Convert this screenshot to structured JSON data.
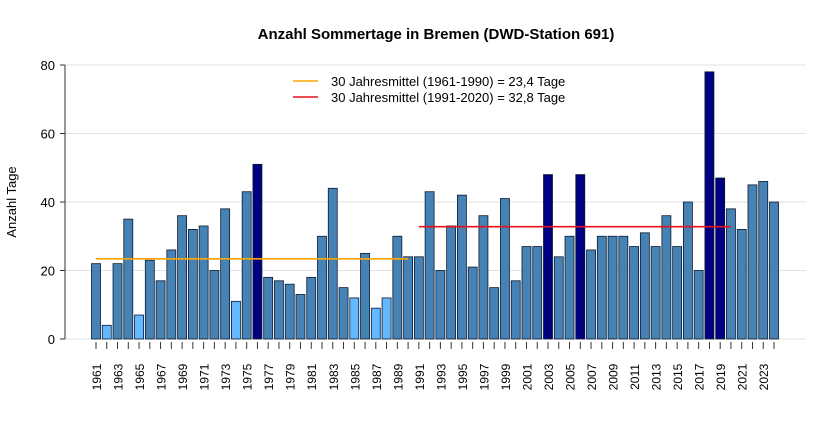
{
  "chart_data": {
    "type": "bar",
    "title": "Anzahl Sommertage in Bremen (DWD-Station 691)",
    "xlabel": "",
    "ylabel": "Anzahl Tage",
    "ylim": [
      0,
      80
    ],
    "yticks": [
      0,
      20,
      40,
      60,
      80
    ],
    "grid": true,
    "legend_placement": "top-center",
    "categories": [
      1961,
      1962,
      1963,
      1964,
      1965,
      1966,
      1967,
      1968,
      1969,
      1970,
      1971,
      1972,
      1973,
      1974,
      1975,
      1976,
      1977,
      1978,
      1979,
      1980,
      1981,
      1982,
      1983,
      1984,
      1985,
      1986,
      1987,
      1988,
      1989,
      1990,
      1991,
      1992,
      1993,
      1994,
      1995,
      1996,
      1997,
      1998,
      1999,
      2000,
      2001,
      2002,
      2003,
      2004,
      2005,
      2006,
      2007,
      2008,
      2009,
      2010,
      2011,
      2012,
      2013,
      2014,
      2015,
      2016,
      2017,
      2018,
      2019,
      2020,
      2021,
      2022,
      2023,
      2024
    ],
    "values": [
      22,
      4,
      22,
      35,
      7,
      23,
      17,
      26,
      36,
      32,
      33,
      20,
      38,
      11,
      43,
      51,
      18,
      17,
      16,
      13,
      18,
      30,
      44,
      15,
      12,
      25,
      9,
      12,
      30,
      24,
      24,
      43,
      20,
      33,
      42,
      21,
      36,
      15,
      41,
      17,
      27,
      27,
      48,
      24,
      30,
      48,
      26,
      30,
      30,
      30,
      27,
      31,
      27,
      36,
      27,
      40,
      20,
      78,
      47,
      38,
      32,
      45,
      46,
      40
    ],
    "bar_colors": {
      "normal": "#4682B4",
      "low": "#63B8FF",
      "high": "#000080"
    },
    "reference_lines": [
      {
        "label": "30 Jahresmittel (1961-1990) = 23,4 Tage",
        "value": 23.4,
        "from": 1961,
        "to": 1990,
        "color": "#FFA500"
      },
      {
        "label": "30 Jahresmittel (1991-2020) = 32,8 Tage",
        "value": 32.8,
        "from": 1991,
        "to": 2020,
        "color": "#E8101A"
      }
    ]
  }
}
